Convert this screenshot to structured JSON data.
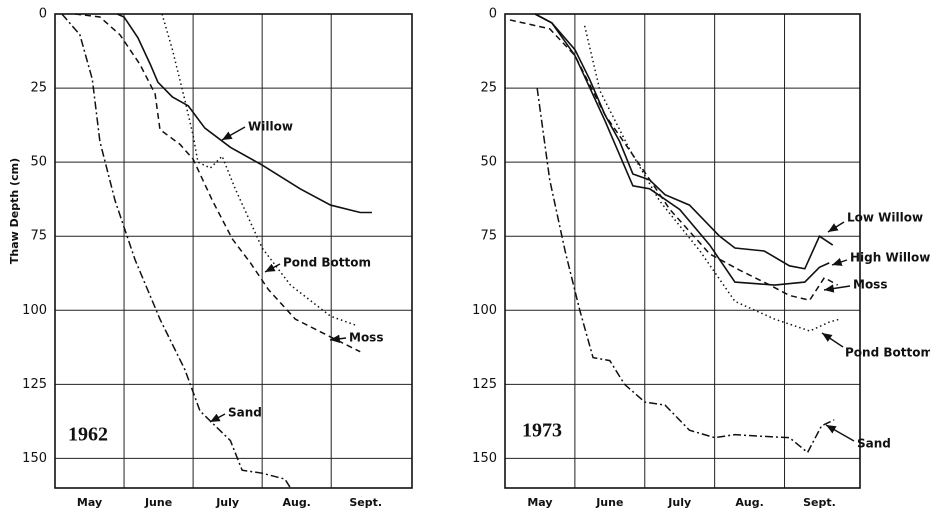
{
  "chart_data": [
    {
      "type": "line",
      "label": "1962",
      "y_label": "Thaw Depth (cm)",
      "x_categories": [
        "May",
        "June",
        "July",
        "Aug.",
        "Sept."
      ],
      "xlim": [
        0,
        5.17
      ],
      "xticks": [
        1,
        2,
        3,
        4
      ],
      "ylim": [
        0,
        160
      ],
      "yticks": [
        0,
        25,
        50,
        75,
        100,
        125,
        150
      ],
      "y_inverted": true,
      "grid": true,
      "series": [
        {
          "name": "Willow",
          "color": "#111111",
          "style": "solid",
          "x": [
            0.9,
            1.0,
            1.2,
            1.38,
            1.49,
            1.7,
            1.93,
            2.17,
            2.54,
            3.0,
            3.55,
            3.99,
            4.42,
            4.59
          ],
          "values": [
            0,
            1,
            8,
            17,
            23,
            28,
            31,
            38.5,
            45,
            51,
            59,
            64.5,
            67,
            67
          ]
        },
        {
          "name": "Pond Bottom",
          "color": "#111111",
          "style": "dotted",
          "x": [
            1.55,
            1.7,
            1.88,
            2.0,
            2.07,
            2.25,
            2.42,
            2.61,
            3.0,
            3.41,
            3.99,
            4.35
          ],
          "values": [
            0,
            12,
            29,
            41,
            50,
            52,
            48,
            59,
            79,
            91.5,
            102,
            105
          ]
        },
        {
          "name": "Moss",
          "color": "#111111",
          "style": "dashed",
          "x": [
            0.29,
            0.65,
            0.94,
            1.23,
            1.45,
            1.52,
            1.81,
            2.0,
            2.28,
            2.57,
            2.83,
            3.09,
            3.48,
            3.99,
            4.42
          ],
          "values": [
            0,
            1,
            7,
            17,
            27,
            39,
            44,
            49,
            63,
            76,
            84,
            93,
            103,
            109,
            114
          ]
        },
        {
          "name": "Sand",
          "color": "#111111",
          "style": "dashdot",
          "x": [
            0.1,
            0.36,
            0.54,
            0.65,
            0.87,
            1.16,
            1.52,
            1.88,
            2.1,
            2.54,
            2.71,
            3.0,
            3.33,
            3.41
          ],
          "values": [
            0,
            7,
            22,
            43,
            63,
            83,
            103,
            120,
            134,
            144,
            154,
            155,
            157,
            160
          ]
        }
      ]
    },
    {
      "type": "line",
      "label": "1973",
      "x_categories": [
        "May",
        "June",
        "July",
        "Aug.",
        "Sept."
      ],
      "xlim": [
        0,
        5.08
      ],
      "xticks": [
        1,
        2,
        3,
        4
      ],
      "ylim": [
        0,
        160
      ],
      "yticks": [
        0,
        25,
        50,
        75,
        100,
        125,
        150
      ],
      "y_inverted": true,
      "grid": true,
      "series": [
        {
          "name": "Low Willow",
          "color": "#111111",
          "style": "solid",
          "x": [
            0.43,
            0.67,
            1.0,
            1.21,
            1.43,
            1.64,
            1.83,
            2.07,
            2.29,
            2.64,
            3.07,
            3.29,
            3.71,
            4.07,
            4.29,
            4.5,
            4.69
          ],
          "values": [
            0,
            3,
            12,
            22,
            34,
            43,
            54,
            56,
            61,
            64.5,
            75,
            79,
            80,
            85,
            86,
            75,
            78
          ]
        },
        {
          "name": "High Willow",
          "color": "#111111",
          "style": "solid",
          "x": [
            0.43,
            0.67,
            1.0,
            1.43,
            1.83,
            2.07,
            2.5,
            2.93,
            3.29,
            3.86,
            4.29,
            4.5,
            4.64
          ],
          "values": [
            0,
            3,
            14,
            36,
            58,
            59,
            66,
            78,
            90.5,
            91.5,
            90.5,
            85.5,
            84
          ]
        },
        {
          "name": "Moss",
          "color": "#111111",
          "style": "dashed",
          "x": [
            0.07,
            0.64,
            1.0,
            1.43,
            1.93,
            2.36,
            2.93,
            3.36,
            3.79,
            4.07,
            4.36,
            4.57,
            4.76
          ],
          "values": [
            2,
            5,
            14,
            34,
            51,
            66,
            81,
            86.5,
            91.5,
            95,
            96.6,
            89,
            91.5
          ]
        },
        {
          "name": "Pond Bottom",
          "color": "#111111",
          "style": "dotted",
          "x": [
            1.14,
            1.36,
            1.79,
            2.21,
            2.79,
            3.29,
            3.86,
            4.36,
            4.64,
            4.79
          ],
          "values": [
            4,
            26,
            46,
            63,
            80,
            97,
            103,
            107,
            104,
            103
          ]
        },
        {
          "name": "Sand",
          "color": "#111111",
          "style": "dashdot",
          "x": [
            0.46,
            0.64,
            0.86,
            1.07,
            1.26,
            1.5,
            1.71,
            2.0,
            2.29,
            2.64,
            3.0,
            3.29,
            3.64,
            4.07,
            4.33,
            4.53,
            4.71
          ],
          "values": [
            25,
            56,
            80,
            100,
            116,
            117,
            125,
            131,
            132,
            140.5,
            143,
            142,
            142.5,
            143,
            148,
            139,
            137
          ]
        }
      ]
    }
  ]
}
